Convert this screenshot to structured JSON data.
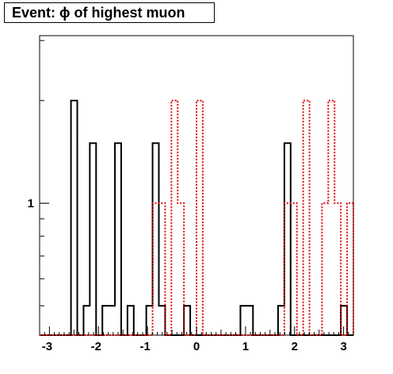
{
  "title": "Event: ϕ of highest muon",
  "chart_data": {
    "type": "histogram",
    "title": "Event: ϕ of highest muon",
    "xlabel": "",
    "ylabel": "",
    "xlim": [
      -3.2,
      3.2
    ],
    "ylim": [
      0.41,
      3.1
    ],
    "y_scale": "log",
    "grid": false,
    "legend": "none",
    "x_ticks": [
      -3,
      -2,
      -1,
      0,
      1,
      2,
      3
    ],
    "y_tick_labels": [
      {
        "value": 1,
        "label": "1"
      }
    ],
    "bin_edges": [
      -3.2,
      -3.072,
      -2.944,
      -2.816,
      -2.688,
      -2.56,
      -2.432,
      -2.304,
      -2.176,
      -2.048,
      -1.92,
      -1.792,
      -1.664,
      -1.536,
      -1.408,
      -1.28,
      -1.152,
      -1.024,
      -0.896,
      -0.768,
      -0.64,
      -0.512,
      -0.384,
      -0.256,
      -0.128,
      0.0,
      0.128,
      0.256,
      0.384,
      0.512,
      0.64,
      0.768,
      0.896,
      1.024,
      1.152,
      1.28,
      1.408,
      1.536,
      1.664,
      1.792,
      1.92,
      2.048,
      2.176,
      2.304,
      2.432,
      2.56,
      2.688,
      2.816,
      2.944,
      3.072,
      3.2
    ],
    "series": [
      {
        "color": "#000000",
        "style": "solid",
        "values": [
          0,
          0,
          0,
          0,
          0,
          2,
          0,
          0.5,
          1.5,
          0,
          0.5,
          0.5,
          1.5,
          0,
          0.5,
          0,
          0,
          0.5,
          1.5,
          0.5,
          0,
          0,
          0,
          0.5,
          0,
          0,
          0,
          0,
          0,
          0,
          0,
          0,
          0.5,
          0.5,
          0,
          0,
          0,
          0,
          0.5,
          1.5,
          0,
          0,
          0,
          0,
          0,
          0,
          0,
          0,
          0.5,
          0
        ]
      },
      {
        "color": "#dd0000",
        "style": "dotted",
        "values": [
          0,
          0,
          0,
          0,
          0,
          0,
          0,
          0,
          0,
          0,
          0,
          0,
          0,
          0,
          0,
          0,
          0,
          0,
          1,
          1,
          0,
          2,
          1,
          0,
          0,
          2,
          0,
          0,
          0,
          0,
          0,
          0,
          0,
          0,
          0,
          0,
          0,
          0,
          0,
          1,
          1,
          0,
          2,
          0,
          0,
          1,
          2,
          1,
          0,
          1
        ]
      }
    ]
  }
}
